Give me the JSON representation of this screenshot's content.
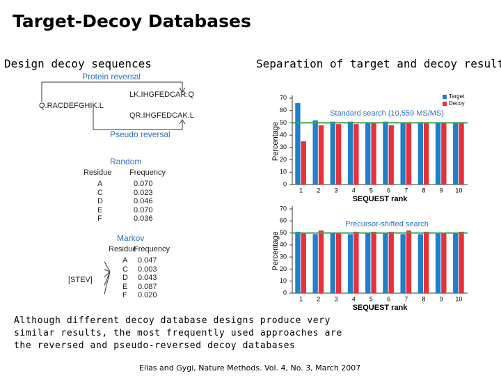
{
  "title": "Target-Decoy Databases",
  "left_heading": "Design decoy sequences",
  "right_heading": "Separation of target and decoy results",
  "diagram": {
    "protein_reversal": "Protein reversal",
    "original": "Q.RACDEFGHIK.L",
    "reversed": "LK.IHGFEDCAR.Q",
    "pseudo_reversed": "QR.IHGFEDCAK.L",
    "pseudo_reversal": "Pseudo reversal",
    "random": {
      "title": "Random",
      "headers": [
        "Residue",
        "Frequency"
      ],
      "rows": [
        [
          "A",
          "0.070"
        ],
        [
          "C",
          "0.023"
        ],
        [
          "D",
          "0.046"
        ],
        [
          "E",
          "0.070"
        ],
        [
          "F",
          "0.036"
        ]
      ]
    },
    "markov": {
      "title": "Markov",
      "headers": [
        "Residue",
        "Frequency"
      ],
      "context": "[STEV]",
      "rows": [
        [
          "A",
          "0.047"
        ],
        [
          "C",
          "0.003"
        ],
        [
          "D",
          "0.043"
        ],
        [
          "E",
          "0.087"
        ],
        [
          "F",
          "0.020"
        ]
      ]
    }
  },
  "chart_data": [
    {
      "type": "bar",
      "title": "Standard search (10,559 MS/MS)",
      "xlabel": "SEQUEST rank",
      "ylabel": "Percentage",
      "categories": [
        "1",
        "2",
        "3",
        "4",
        "5",
        "6",
        "7",
        "8",
        "9",
        "10"
      ],
      "series": [
        {
          "name": "Target",
          "color": "#1f7fc9",
          "values": [
            66,
            52,
            51,
            51,
            50,
            51,
            50,
            50,
            50,
            50
          ]
        },
        {
          "name": "Decoy",
          "color": "#e8303a",
          "values": [
            35,
            48,
            49,
            49,
            50,
            48,
            50,
            50,
            50,
            50
          ]
        }
      ],
      "reference_line": 50,
      "reference_color": "#3aa64a",
      "ylim": [
        0,
        70
      ],
      "yticks": [
        0,
        10,
        20,
        30,
        40,
        50,
        60,
        70
      ],
      "legend": "top-right"
    },
    {
      "type": "bar",
      "title": "Precursor-shifted search",
      "xlabel": "SEQUEST rank",
      "ylabel": "Percentage",
      "categories": [
        "1",
        "2",
        "3",
        "4",
        "5",
        "6",
        "7",
        "8",
        "9",
        "10"
      ],
      "series": [
        {
          "values": [
            51,
            49,
            50,
            49,
            50,
            50,
            49,
            49,
            50,
            50
          ],
          "color": "#1f7fc9"
        },
        {
          "values": [
            50,
            52,
            50,
            51,
            51,
            51,
            52,
            51,
            50,
            51
          ],
          "color": "#e8303a"
        }
      ],
      "reference_line": 50,
      "reference_color": "#3aa64a",
      "ylim": [
        0,
        70
      ],
      "yticks": [
        0,
        10,
        20,
        30,
        40,
        50,
        60,
        70
      ]
    }
  ],
  "caption": "Although different decoy database designs produce very similar results, the most frequently used approaches are the reversed and pseudo-reversed decoy databases",
  "citation": "Elias and Gygi, Nature Methods. Vol. 4, No. 3, March 2007"
}
